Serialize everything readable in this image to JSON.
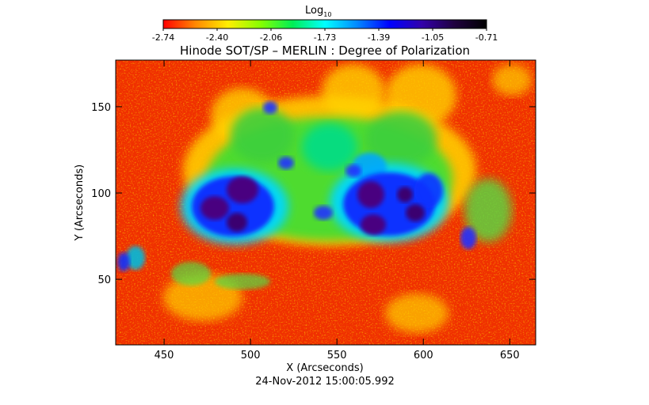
{
  "colorbar": {
    "label_main": "Log",
    "label_sub": "10",
    "ticks": [
      "-2.74",
      "-2.40",
      "-2.06",
      "-1.73",
      "-1.39",
      "-1.05",
      "-0.71"
    ],
    "colors": [
      "#ff0000",
      "#ff8800",
      "#ffee00",
      "#88ff00",
      "#00ee55",
      "#00ffff",
      "#0088ff",
      "#0000ff",
      "#3300aa",
      "#200040",
      "#000000"
    ]
  },
  "chart_data": {
    "type": "heatmap",
    "title": "Hinode SOT/SP – MERLIN : Degree of Polarization",
    "xlabel": "X (Arcseconds)",
    "ylabel": "Y (Arcseconds)",
    "xlim": [
      422,
      665
    ],
    "ylim": [
      12,
      177
    ],
    "xticks": [
      450,
      500,
      550,
      600,
      650
    ],
    "yticks": [
      50,
      100,
      150
    ],
    "value_range": [
      -2.74,
      -0.71
    ],
    "timestamp": "24-Nov-2012 15:00:05.992"
  }
}
